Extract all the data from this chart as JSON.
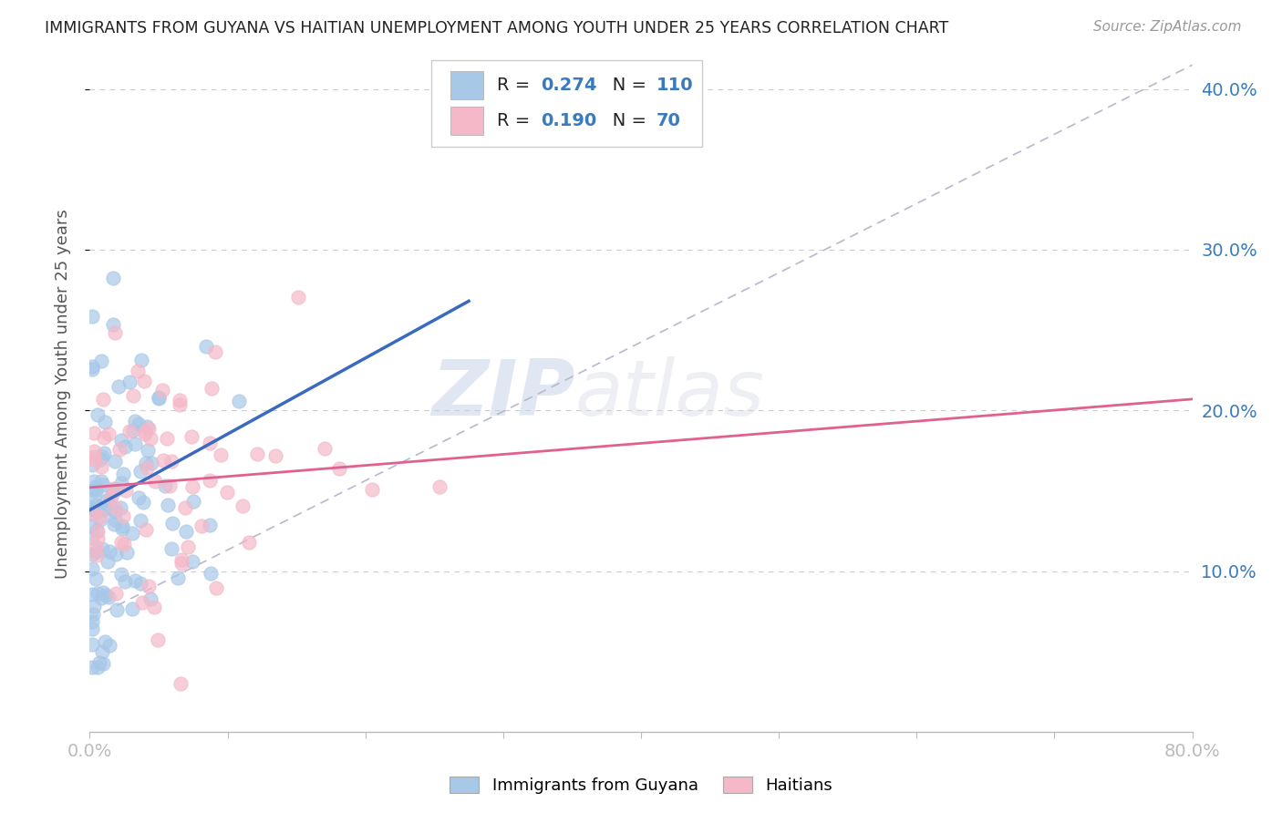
{
  "title": "IMMIGRANTS FROM GUYANA VS HAITIAN UNEMPLOYMENT AMONG YOUTH UNDER 25 YEARS CORRELATION CHART",
  "source": "Source: ZipAtlas.com",
  "ylabel": "Unemployment Among Youth under 25 years",
  "xlim": [
    0.0,
    0.8
  ],
  "ylim": [
    0.0,
    0.42
  ],
  "legend1_R": "0.274",
  "legend1_N": "110",
  "legend2_R": "0.190",
  "legend2_N": "70",
  "color_blue": "#a8c8e8",
  "color_pink": "#f4b8c8",
  "color_blue_line": "#3a6abf",
  "color_pink_line": "#e06090",
  "color_dashed": "#b8b8cc",
  "watermark_zip": "ZIP",
  "watermark_atlas": "atlas",
  "blue_line_x": [
    0.0,
    0.275
  ],
  "blue_line_y": [
    0.138,
    0.268
  ],
  "pink_line_x": [
    0.0,
    0.8
  ],
  "pink_line_y": [
    0.152,
    0.207
  ],
  "dash_line_x": [
    0.0,
    0.8
  ],
  "dash_line_y": [
    0.07,
    0.415
  ]
}
